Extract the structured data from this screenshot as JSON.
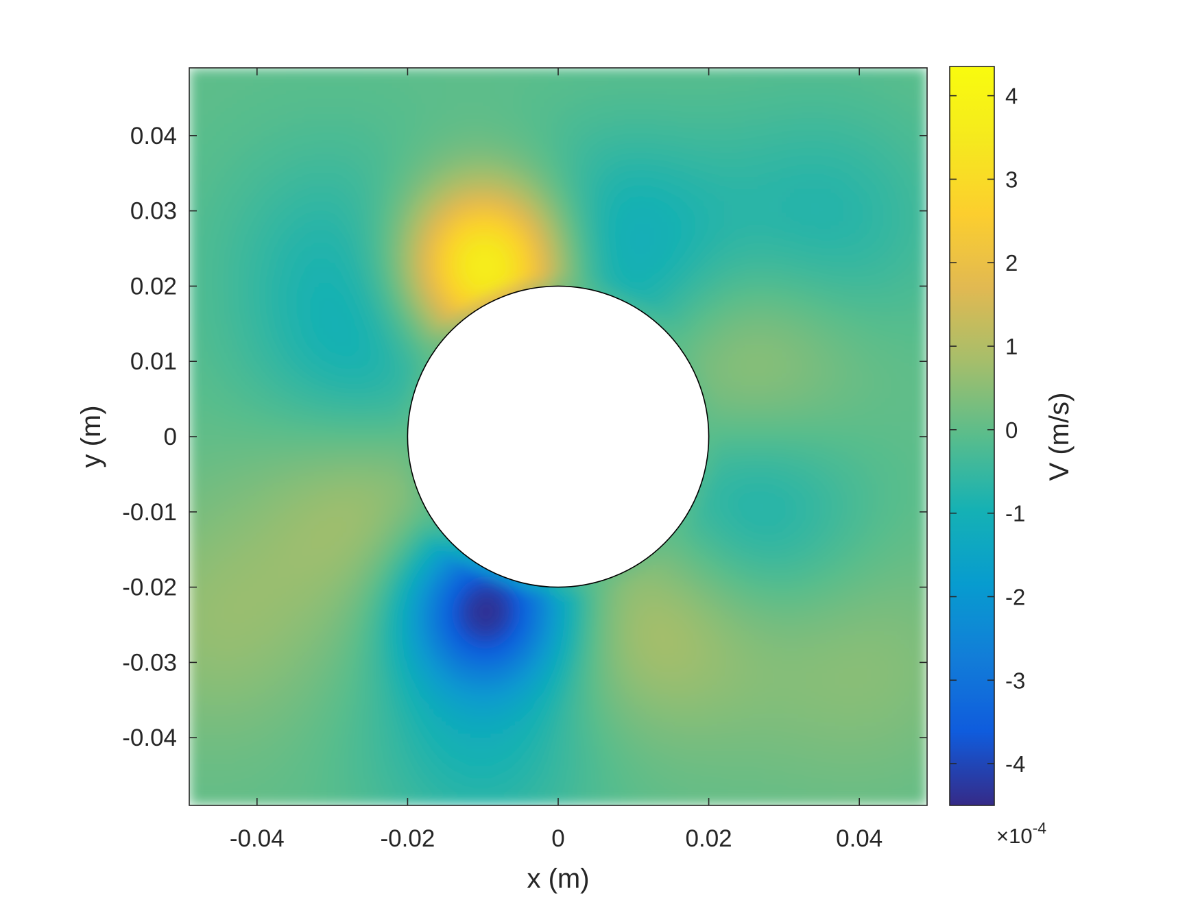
{
  "chart_data": {
    "type": "heatmap",
    "title": "",
    "xlabel": "x (m)",
    "ylabel": "y (m)",
    "xlim": [
      -0.049,
      0.049
    ],
    "ylim": [
      -0.049,
      0.049
    ],
    "x_ticks": [
      -0.04,
      -0.02,
      0,
      0.02,
      0.04
    ],
    "x_tick_labels": [
      "-0.04",
      "-0.02",
      "0",
      "0.02",
      "0.04"
    ],
    "y_ticks": [
      0.04,
      0.03,
      0.02,
      0.01,
      0,
      -0.01,
      -0.02,
      -0.03,
      -0.04
    ],
    "y_tick_labels": [
      "0.04",
      "0.03",
      "0.02",
      "0.01",
      "0",
      "-0.01",
      "-0.02",
      "-0.03",
      "-0.04"
    ],
    "obstacle": {
      "shape": "circle",
      "center": [
        0,
        0
      ],
      "radius": 0.02,
      "fill": "#ffffff"
    },
    "colorbar": {
      "label": "V (m/s)",
      "range": [
        -4.5,
        4.35
      ],
      "ticks": [
        4,
        3,
        2,
        1,
        0,
        -1,
        -2,
        -3,
        -4
      ],
      "tick_labels": [
        "4",
        "3",
        "2",
        "1",
        "0",
        "-1",
        "-2",
        "-3",
        "-4"
      ],
      "multiplier_base": "×10",
      "multiplier_exponent": "-4",
      "colormap": "parula"
    },
    "features": [
      {
        "x": -0.0095,
        "y": 0.0225,
        "value": 4.3
      },
      {
        "x": -0.0095,
        "y": -0.0225,
        "value": -4.4
      },
      {
        "x": 0.0245,
        "y": 0.0095,
        "value": 1.0
      },
      {
        "x": 0.0245,
        "y": -0.0095,
        "value": -1.2
      },
      {
        "x": -0.0245,
        "y": -0.008,
        "value": 1.0
      },
      {
        "x": -0.0245,
        "y": 0.008,
        "value": -1.0
      },
      {
        "x": 0.013,
        "y": -0.0235,
        "value": 1.1
      },
      {
        "x": 0.008,
        "y": 0.0235,
        "value": -1.3
      },
      {
        "x": -0.045,
        "y": -0.025,
        "value": 0.6
      },
      {
        "x": 0.04,
        "y": -0.03,
        "value": 0.5
      },
      {
        "x": -0.03,
        "y": 0.025,
        "value": -0.6
      },
      {
        "x": 0.035,
        "y": 0.028,
        "value": -0.8
      },
      {
        "x": -0.01,
        "y": -0.04,
        "value": -0.9
      }
    ],
    "grid": false,
    "legend": "none"
  }
}
